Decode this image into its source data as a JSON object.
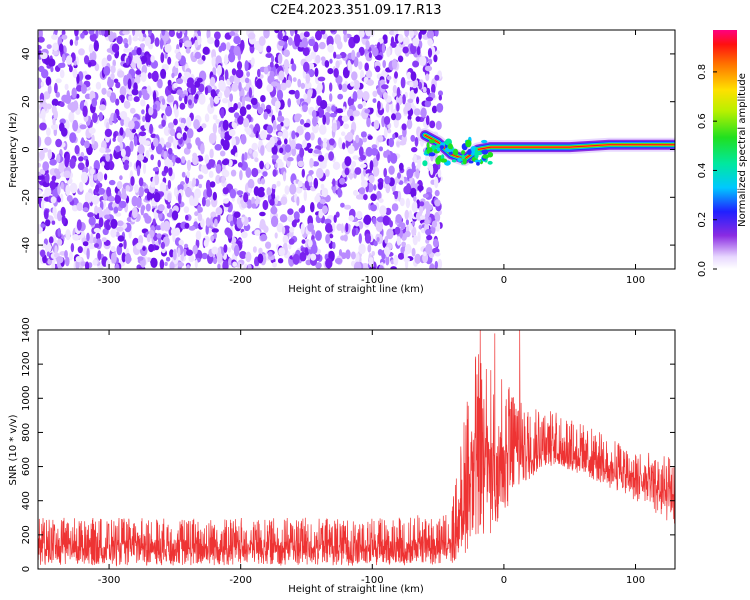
{
  "figure_title": "C2E4.2023.351.09.17.R13",
  "chart_data": [
    {
      "type": "heatmap",
      "xlabel": "Height of straight line (km)",
      "ylabel": "Frequency (Hz)",
      "xlim": [
        -354,
        130
      ],
      "ylim": [
        -50,
        50
      ],
      "xticks": [
        -300,
        -200,
        -100,
        0,
        100
      ],
      "yticks": [
        -40,
        -20,
        0,
        20,
        40
      ],
      "noise_region_x": [
        -354,
        -48
      ],
      "signal_track": [
        {
          "x": -60,
          "y": 6
        },
        {
          "x": -50,
          "y": 3
        },
        {
          "x": -40,
          "y": -2
        },
        {
          "x": -30,
          "y": -4
        },
        {
          "x": -20,
          "y": 0
        },
        {
          "x": -10,
          "y": 1
        },
        {
          "x": 0,
          "y": 1
        },
        {
          "x": 20,
          "y": 1
        },
        {
          "x": 50,
          "y": 1
        },
        {
          "x": 80,
          "y": 2
        },
        {
          "x": 130,
          "y": 2
        }
      ],
      "colorbar": {
        "label": "Normalized spectral amplitude",
        "min": 0.0,
        "max": 0.97,
        "ticks": [
          0.0,
          0.2,
          0.4,
          0.6,
          0.8
        ]
      },
      "grid": false
    },
    {
      "type": "line",
      "xlabel": "Height of straight line (km)",
      "ylabel": "SNR (10 * v/v)",
      "xlim": [
        -354,
        130
      ],
      "ylim": [
        0,
        1400
      ],
      "xticks": [
        -300,
        -200,
        -100,
        0,
        100
      ],
      "yticks": [
        0,
        200,
        400,
        600,
        800,
        1000,
        1200,
        1400
      ],
      "color": "#ee3333",
      "envelope": [
        {
          "x": -354,
          "low": 20,
          "high": 300
        },
        {
          "x": -100,
          "low": 20,
          "high": 300
        },
        {
          "x": -40,
          "low": 20,
          "high": 330
        },
        {
          "x": -30,
          "low": 80,
          "high": 900
        },
        {
          "x": -25,
          "low": 150,
          "high": 1300
        },
        {
          "x": -10,
          "low": 200,
          "high": 1200
        },
        {
          "x": 0,
          "low": 300,
          "high": 1100
        },
        {
          "x": 10,
          "low": 450,
          "high": 1050
        },
        {
          "x": 30,
          "low": 600,
          "high": 950
        },
        {
          "x": 60,
          "low": 550,
          "high": 850
        },
        {
          "x": 100,
          "low": 400,
          "high": 700
        },
        {
          "x": 130,
          "low": 250,
          "high": 650
        }
      ],
      "spikes": [
        {
          "x": -18,
          "y": 1400
        },
        {
          "x": -7,
          "y": 1380
        },
        {
          "x": 12,
          "y": 1400
        }
      ],
      "grid": false
    }
  ]
}
